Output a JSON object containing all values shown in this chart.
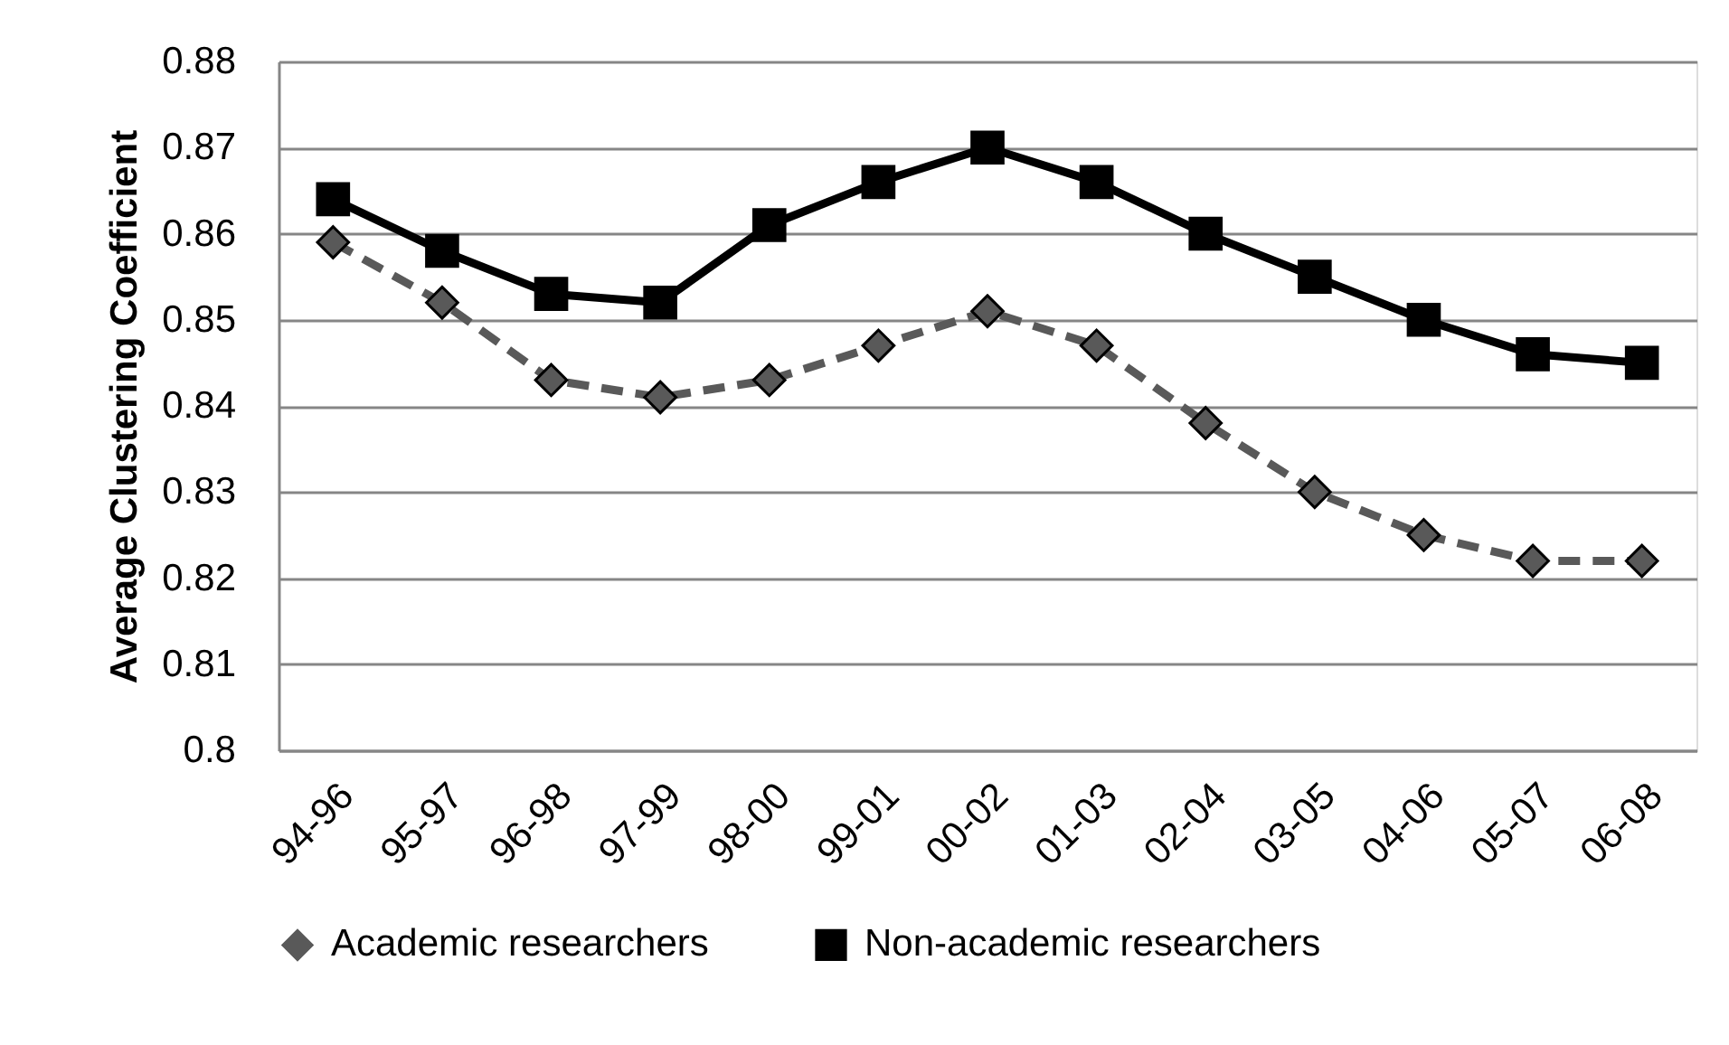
{
  "chart_data": {
    "type": "line",
    "ylabel": "Average Clustering Coefficient",
    "categories": [
      "94-96",
      "95-97",
      "96-98",
      "97-99",
      "98-00",
      "99-01",
      "00-02",
      "01-03",
      "02-04",
      "03-05",
      "04-06",
      "05-07",
      "06-08"
    ],
    "series": [
      {
        "name": "Academic researchers",
        "color": "#595959",
        "marker": "diamond",
        "line_style": "dashed",
        "values": [
          0.859,
          0.852,
          0.843,
          0.841,
          0.843,
          0.847,
          0.851,
          0.847,
          0.838,
          0.83,
          0.825,
          0.822,
          0.822
        ]
      },
      {
        "name": "Non-academic researchers",
        "color": "#000000",
        "marker": "square",
        "line_style": "solid",
        "values": [
          0.864,
          0.858,
          0.853,
          0.852,
          0.861,
          0.866,
          0.87,
          0.866,
          0.86,
          0.855,
          0.85,
          0.846,
          0.845
        ]
      }
    ],
    "ylim": [
      0.8,
      0.88
    ],
    "yticks": [
      0.8,
      0.81,
      0.82,
      0.83,
      0.84,
      0.85,
      0.86,
      0.87,
      0.88
    ],
    "grid": "y",
    "legend": "bottom"
  }
}
